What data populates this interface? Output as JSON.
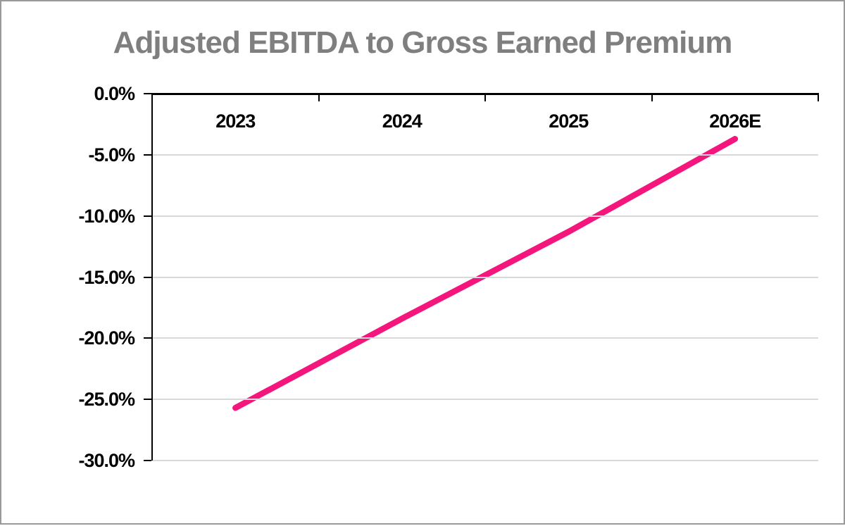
{
  "chart_data": {
    "type": "line",
    "title": "Adjusted EBITDA to Gross Earned Premium",
    "categories": [
      "2023",
      "2024",
      "2025",
      "2026E"
    ],
    "series": [
      {
        "name": "Adjusted EBITDA to Gross Earned Premium",
        "values": [
          -25.7,
          -18.4,
          -11.3,
          -3.7
        ]
      }
    ],
    "xlabel": "",
    "ylabel": "",
    "ylim": [
      -30,
      0
    ],
    "ytick_step": 5,
    "ytick_labels": [
      "0.0%",
      "-5.0%",
      "-10.0%",
      "-15.0%",
      "-20.0%",
      "-25.0%",
      "-30.0%"
    ],
    "grid": true,
    "legend": false,
    "colors": {
      "line": "#F4157D",
      "title": "#7F7F7F",
      "axis": "#000000",
      "gridline": "#D9D9D9",
      "frame_border": "#999999",
      "background": "#FFFFFF"
    }
  }
}
